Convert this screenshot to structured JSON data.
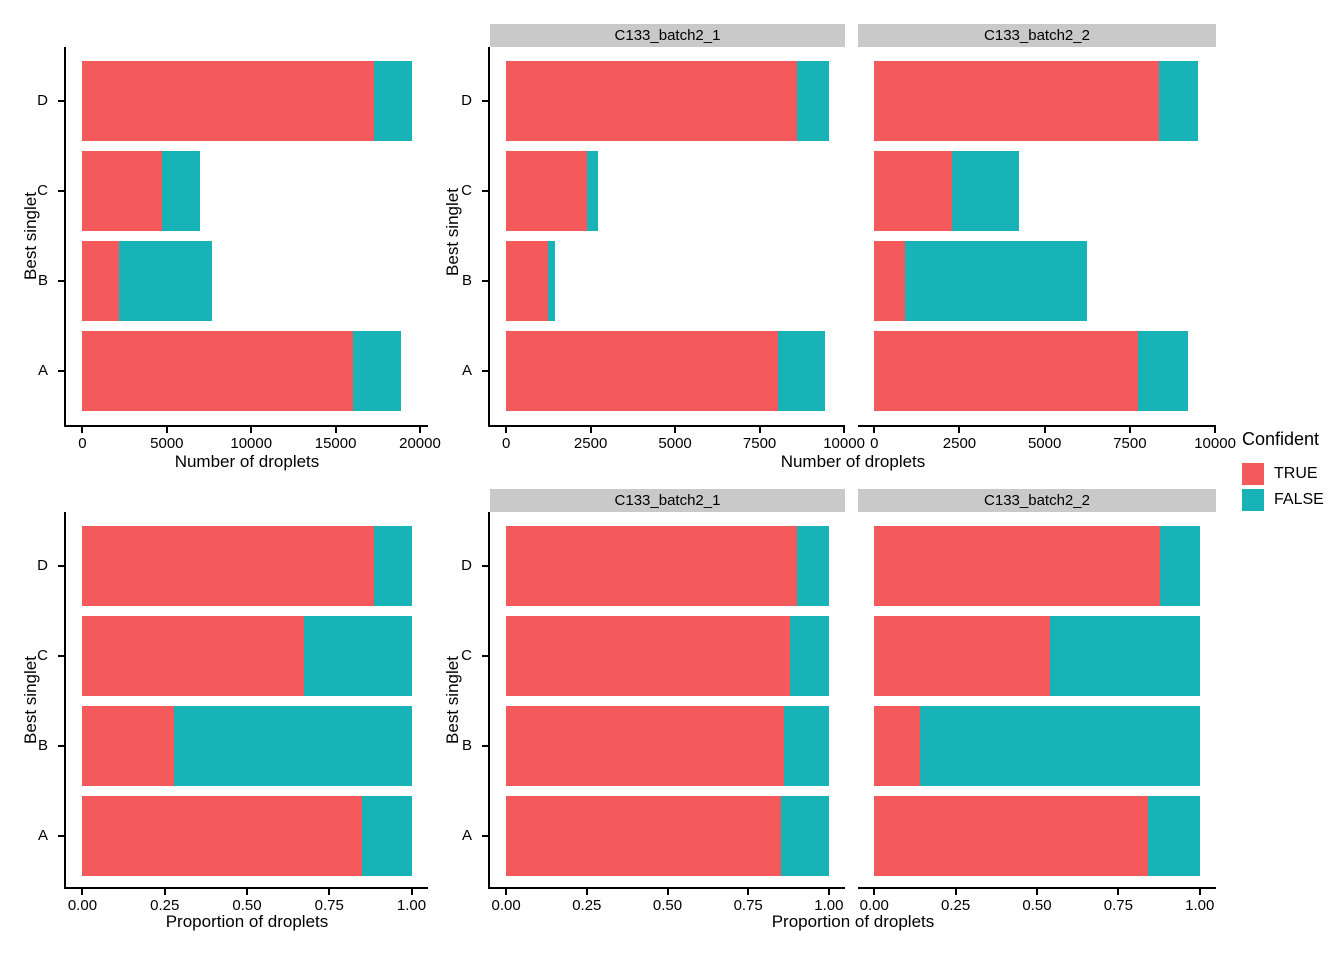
{
  "figure_title": "",
  "palette": {
    "TRUE": "#F4595B",
    "FALSE": "#17B3B6",
    "strip_bg": "#C9C9C9",
    "axis": "#000000"
  },
  "legend": {
    "title": "Confident",
    "entries": [
      {
        "label": "TRUE",
        "key": "TRUE"
      },
      {
        "label": "FALSE",
        "key": "FALSE"
      }
    ]
  },
  "chart_data": {
    "type": "bar",
    "stacked": true,
    "orientation": "horizontal",
    "categories_top_to_bottom": [
      "D",
      "C",
      "B",
      "A"
    ],
    "series_names": [
      "TRUE",
      "FALSE"
    ],
    "grid": "off",
    "legend_position": "right",
    "charts": [
      {
        "id": "counts-combined",
        "xlabel": "Number of droplets",
        "ylabel": "Best singlet",
        "scale_max": 19500,
        "x_ticks": [
          {
            "v": 0,
            "label": "0"
          },
          {
            "v": 5000,
            "label": "5000"
          },
          {
            "v": 10000,
            "label": "10000"
          },
          {
            "v": 15000,
            "label": "15000"
          },
          {
            "v": 20000,
            "label": "20000"
          }
        ],
        "facets": [
          {
            "label": "",
            "rows": [
              {
                "category": "D",
                "TRUE": 17300,
                "FALSE": 2200
              },
              {
                "category": "C",
                "TRUE": 4700,
                "FALSE": 2270
              },
              {
                "category": "B",
                "TRUE": 2150,
                "FALSE": 5550
              },
              {
                "category": "A",
                "TRUE": 16050,
                "FALSE": 2800
              }
            ]
          }
        ]
      },
      {
        "id": "counts-by-batch",
        "xlabel": "Number of droplets",
        "ylabel": "Best singlet",
        "scale_max": 9550,
        "x_ticks": [
          {
            "v": 0,
            "label": "0"
          },
          {
            "v": 2500,
            "label": "2500"
          },
          {
            "v": 5000,
            "label": "5000"
          },
          {
            "v": 7500,
            "label": "7500"
          },
          {
            "v": 10000,
            "label": "10000"
          }
        ],
        "facets": [
          {
            "label": "C133_batch2_1",
            "rows": [
              {
                "category": "D",
                "TRUE": 8600,
                "FALSE": 950
              },
              {
                "category": "C",
                "TRUE": 2400,
                "FALSE": 330
              },
              {
                "category": "B",
                "TRUE": 1250,
                "FALSE": 200
              },
              {
                "category": "A",
                "TRUE": 8050,
                "FALSE": 1400
              }
            ]
          },
          {
            "label": "C133_batch2_2",
            "rows": [
              {
                "category": "D",
                "TRUE": 8350,
                "FALSE": 1150
              },
              {
                "category": "C",
                "TRUE": 2290,
                "FALSE": 1950
              },
              {
                "category": "B",
                "TRUE": 890,
                "FALSE": 5360
              },
              {
                "category": "A",
                "TRUE": 7750,
                "FALSE": 1450
              }
            ]
          }
        ]
      },
      {
        "id": "proportions-combined",
        "xlabel": "Proportion of droplets",
        "ylabel": "Best singlet",
        "scale_max": 1,
        "x_ticks": [
          {
            "v": 0,
            "label": "0.00"
          },
          {
            "v": 0.25,
            "label": "0.25"
          },
          {
            "v": 0.5,
            "label": "0.50"
          },
          {
            "v": 0.75,
            "label": "0.75"
          },
          {
            "v": 1,
            "label": "1.00"
          }
        ],
        "facets": [
          {
            "label": "",
            "rows": [
              {
                "category": "D",
                "TRUE": 0.885,
                "FALSE": 0.115
              },
              {
                "category": "C",
                "TRUE": 0.672,
                "FALSE": 0.328
              },
              {
                "category": "B",
                "TRUE": 0.277,
                "FALSE": 0.723
              },
              {
                "category": "A",
                "TRUE": 0.848,
                "FALSE": 0.152
              }
            ]
          }
        ]
      },
      {
        "id": "proportions-by-batch",
        "xlabel": "Proportion of droplets",
        "ylabel": "Best singlet",
        "scale_max": 1,
        "x_ticks": [
          {
            "v": 0,
            "label": "0.00"
          },
          {
            "v": 0.25,
            "label": "0.25"
          },
          {
            "v": 0.5,
            "label": "0.50"
          },
          {
            "v": 0.75,
            "label": "0.75"
          },
          {
            "v": 1,
            "label": "1.00"
          }
        ],
        "facets": [
          {
            "label": "C133_batch2_1",
            "rows": [
              {
                "category": "D",
                "TRUE": 0.9,
                "FALSE": 0.1
              },
              {
                "category": "C",
                "TRUE": 0.879,
                "FALSE": 0.121
              },
              {
                "category": "B",
                "TRUE": 0.862,
                "FALSE": 0.138
              },
              {
                "category": "A",
                "TRUE": 0.852,
                "FALSE": 0.148
              }
            ]
          },
          {
            "label": "C133_batch2_2",
            "rows": [
              {
                "category": "D",
                "TRUE": 0.879,
                "FALSE": 0.121
              },
              {
                "category": "C",
                "TRUE": 0.541,
                "FALSE": 0.459
              },
              {
                "category": "B",
                "TRUE": 0.142,
                "FALSE": 0.858
              },
              {
                "category": "A",
                "TRUE": 0.842,
                "FALSE": 0.158
              }
            ]
          }
        ]
      }
    ]
  }
}
